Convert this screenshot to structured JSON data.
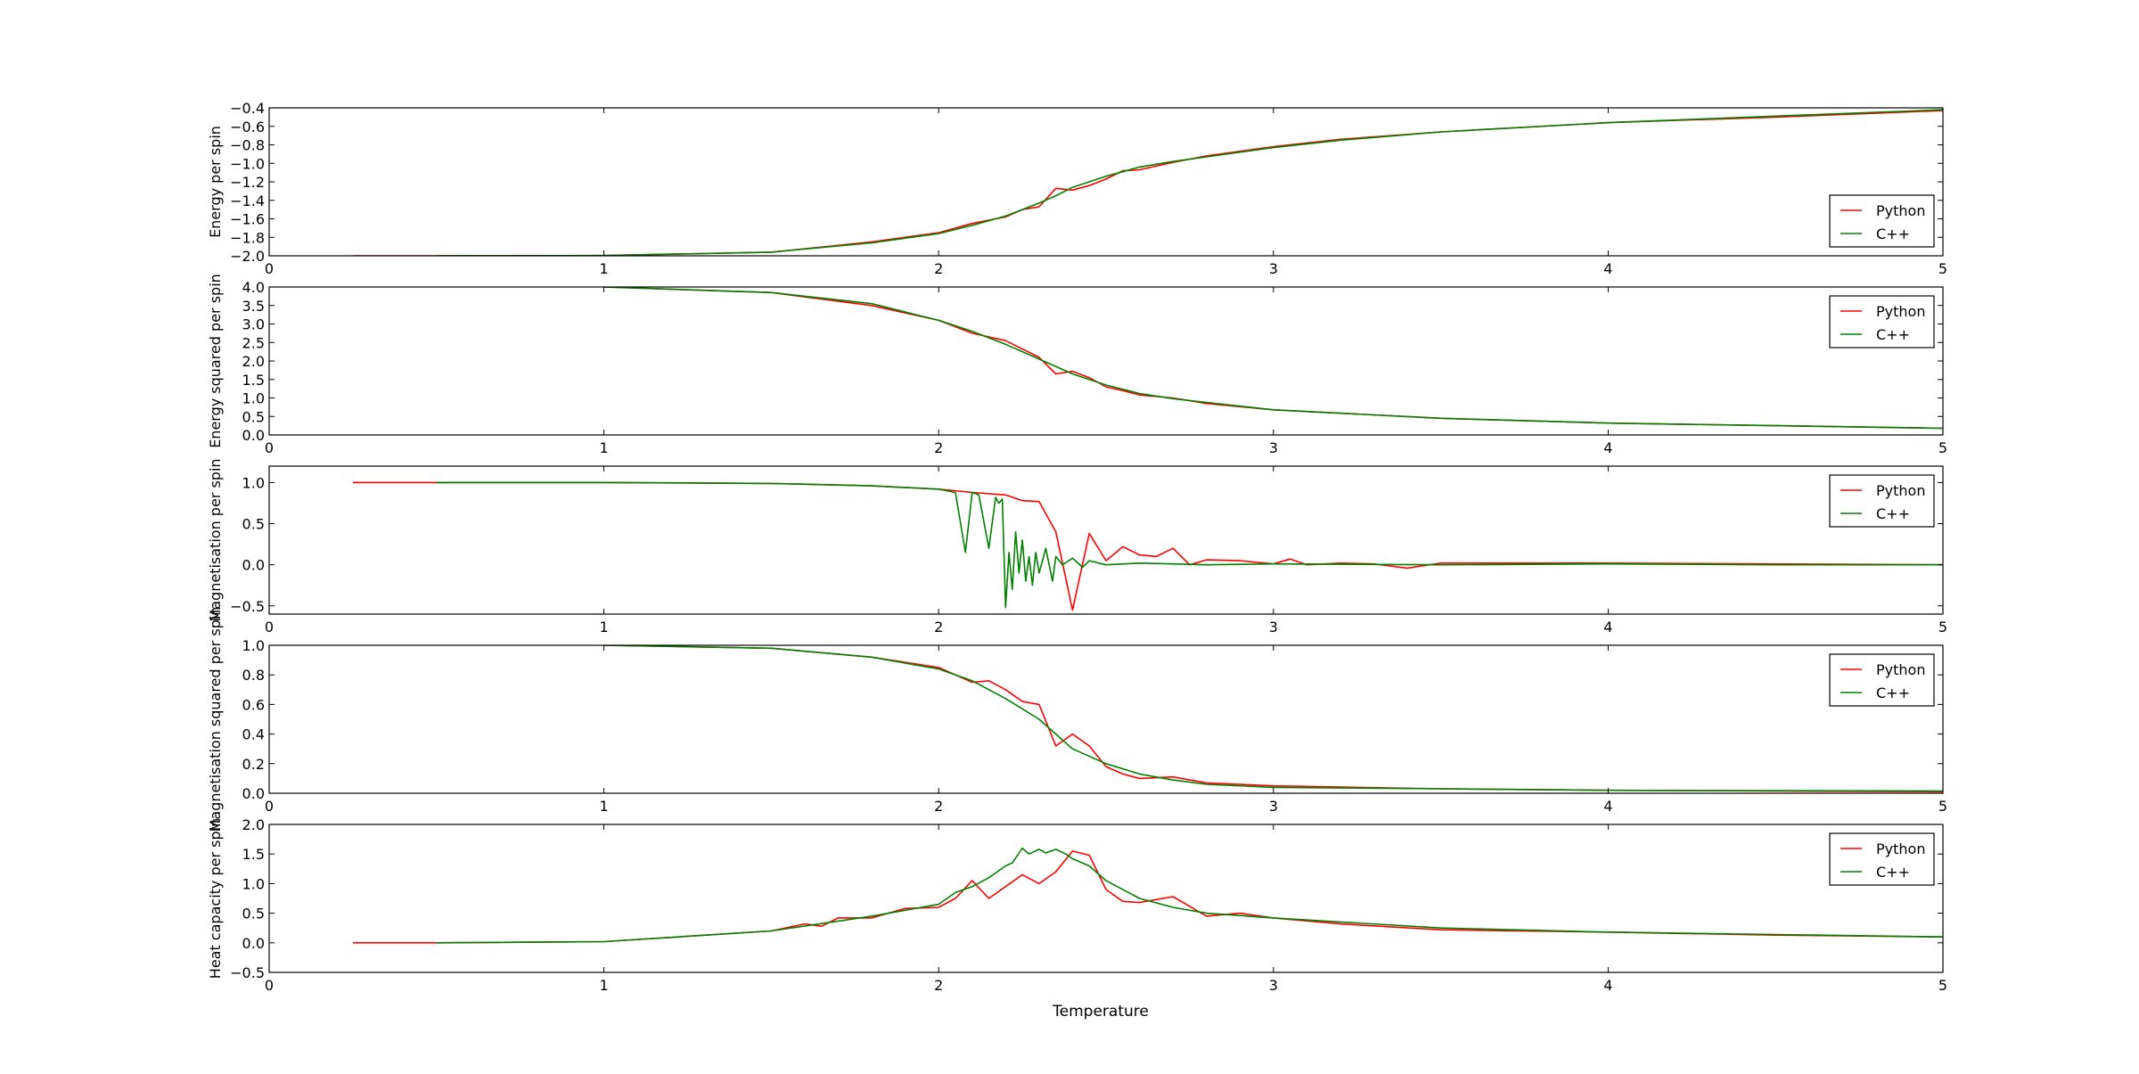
{
  "figure": {
    "xlabel": "Temperature",
    "legend_entries": [
      "Python",
      "C++"
    ],
    "series_colors": {
      "Python": "#ff0000",
      "C++": "#008000"
    }
  },
  "chart_data": [
    {
      "type": "line",
      "ylabel": "Energy per spin",
      "xlabel": "",
      "xlim": [
        0,
        5
      ],
      "ylim": [
        -2.0,
        -0.4
      ],
      "x_ticks": [
        "0",
        "1",
        "2",
        "3",
        "4",
        "5"
      ],
      "y_ticks": [
        "−2.0",
        "−1.8",
        "−1.6",
        "−1.4",
        "−1.2",
        "−1.0",
        "−0.8",
        "−0.6",
        "−0.4"
      ],
      "legend": "lower-right",
      "grid": false,
      "series": [
        {
          "name": "Python",
          "color": "#ff0000",
          "x": [
            0.25,
            0.5,
            1.0,
            1.5,
            1.8,
            2.0,
            2.1,
            2.2,
            2.25,
            2.3,
            2.35,
            2.4,
            2.45,
            2.5,
            2.55,
            2.6,
            2.7,
            2.8,
            3.0,
            3.2,
            3.5,
            4.0,
            4.5,
            5.0
          ],
          "y": [
            -2.0,
            -2.0,
            -1.997,
            -1.96,
            -1.85,
            -1.75,
            -1.65,
            -1.58,
            -1.5,
            -1.47,
            -1.27,
            -1.29,
            -1.24,
            -1.17,
            -1.08,
            -1.07,
            -0.99,
            -0.92,
            -0.82,
            -0.74,
            -0.66,
            -0.56,
            -0.5,
            -0.43
          ]
        },
        {
          "name": "C++",
          "color": "#008000",
          "x": [
            0.5,
            1.0,
            1.5,
            1.8,
            2.0,
            2.1,
            2.2,
            2.3,
            2.35,
            2.4,
            2.5,
            2.6,
            2.7,
            2.8,
            3.0,
            3.2,
            3.5,
            4.0,
            4.5,
            5.0
          ],
          "y": [
            -2.0,
            -1.997,
            -1.96,
            -1.86,
            -1.76,
            -1.67,
            -1.57,
            -1.43,
            -1.35,
            -1.26,
            -1.14,
            -1.04,
            -0.98,
            -0.93,
            -0.83,
            -0.75,
            -0.66,
            -0.56,
            -0.49,
            -0.42
          ]
        }
      ]
    },
    {
      "type": "line",
      "ylabel": "Energy squared per spin",
      "xlabel": "",
      "xlim": [
        0,
        5
      ],
      "ylim": [
        0.0,
        4.0
      ],
      "x_ticks": [
        "0",
        "1",
        "2",
        "3",
        "4",
        "5"
      ],
      "y_ticks": [
        "0.0",
        "0.5",
        "1.0",
        "1.5",
        "2.0",
        "2.5",
        "3.0",
        "3.5",
        "4.0"
      ],
      "legend": "upper-right",
      "grid": false,
      "series": [
        {
          "name": "Python",
          "color": "#ff0000",
          "x": [
            1.0,
            1.5,
            1.8,
            2.0,
            2.1,
            2.2,
            2.3,
            2.35,
            2.4,
            2.45,
            2.5,
            2.55,
            2.6,
            2.7,
            2.8,
            3.0,
            3.5,
            4.0,
            4.5,
            5.0
          ],
          "y": [
            4.0,
            3.85,
            3.5,
            3.1,
            2.75,
            2.55,
            2.1,
            1.65,
            1.72,
            1.55,
            1.3,
            1.2,
            1.08,
            1.0,
            0.85,
            0.68,
            0.45,
            0.32,
            0.25,
            0.18
          ]
        },
        {
          "name": "C++",
          "color": "#008000",
          "x": [
            1.0,
            1.5,
            1.8,
            2.0,
            2.1,
            2.2,
            2.3,
            2.4,
            2.5,
            2.6,
            2.7,
            2.8,
            3.0,
            3.5,
            4.0,
            4.5,
            5.0
          ],
          "y": [
            4.0,
            3.85,
            3.55,
            3.1,
            2.8,
            2.45,
            2.05,
            1.65,
            1.35,
            1.12,
            0.98,
            0.88,
            0.68,
            0.45,
            0.32,
            0.25,
            0.18
          ]
        }
      ]
    },
    {
      "type": "line",
      "ylabel": "Magnetisation per spin",
      "xlabel": "",
      "xlim": [
        0,
        5
      ],
      "ylim": [
        -0.6,
        1.2
      ],
      "x_ticks": [
        "0",
        "1",
        "2",
        "3",
        "4",
        "5"
      ],
      "y_ticks": [
        "−0.5",
        "0.0",
        "0.5",
        "1.0"
      ],
      "legend": "upper-right",
      "grid": false,
      "series": [
        {
          "name": "Python",
          "color": "#ff0000",
          "x": [
            0.25,
            0.5,
            1.0,
            1.5,
            1.8,
            2.0,
            2.1,
            2.2,
            2.25,
            2.3,
            2.35,
            2.4,
            2.45,
            2.5,
            2.55,
            2.6,
            2.65,
            2.7,
            2.75,
            2.8,
            2.9,
            3.0,
            3.05,
            3.1,
            3.2,
            3.3,
            3.4,
            3.5,
            4.0,
            4.5,
            5.0
          ],
          "y": [
            1.0,
            1.0,
            1.0,
            0.99,
            0.96,
            0.92,
            0.88,
            0.85,
            0.78,
            0.77,
            0.4,
            -0.55,
            0.38,
            0.05,
            0.22,
            0.12,
            0.1,
            0.2,
            0.0,
            0.06,
            0.05,
            0.01,
            0.07,
            0.0,
            0.02,
            0.01,
            -0.04,
            0.02,
            0.02,
            0.01,
            0.0
          ]
        },
        {
          "name": "C++",
          "color": "#008000",
          "x": [
            0.5,
            1.0,
            1.5,
            1.8,
            2.0,
            2.05,
            2.08,
            2.1,
            2.12,
            2.15,
            2.17,
            2.18,
            2.19,
            2.2,
            2.21,
            2.22,
            2.23,
            2.24,
            2.25,
            2.26,
            2.27,
            2.28,
            2.29,
            2.3,
            2.32,
            2.34,
            2.35,
            2.37,
            2.4,
            2.43,
            2.45,
            2.5,
            2.6,
            2.7,
            2.8,
            3.0,
            3.5,
            4.0,
            4.5,
            5.0
          ],
          "y": [
            1.0,
            1.0,
            0.99,
            0.96,
            0.92,
            0.88,
            0.15,
            0.88,
            0.85,
            0.2,
            0.82,
            0.75,
            0.8,
            -0.52,
            0.15,
            -0.3,
            0.4,
            -0.1,
            0.3,
            -0.2,
            0.1,
            -0.25,
            0.15,
            -0.1,
            0.2,
            -0.2,
            0.1,
            0.0,
            0.08,
            -0.03,
            0.05,
            0.0,
            0.02,
            0.01,
            0.0,
            0.01,
            0.0,
            0.01,
            0.0,
            0.0
          ]
        }
      ]
    },
    {
      "type": "line",
      "ylabel": "Magnetisation squared per spin",
      "xlabel": "",
      "xlim": [
        0,
        5
      ],
      "ylim": [
        0.0,
        1.0
      ],
      "x_ticks": [
        "0",
        "1",
        "2",
        "3",
        "4",
        "5"
      ],
      "y_ticks": [
        "0.0",
        "0.2",
        "0.4",
        "0.6",
        "0.8",
        "1.0"
      ],
      "legend": "upper-right",
      "grid": false,
      "series": [
        {
          "name": "Python",
          "color": "#ff0000",
          "x": [
            1.0,
            1.5,
            1.8,
            2.0,
            2.1,
            2.15,
            2.2,
            2.25,
            2.3,
            2.35,
            2.4,
            2.45,
            2.5,
            2.55,
            2.6,
            2.7,
            2.8,
            3.0,
            3.5,
            4.0,
            5.0
          ],
          "y": [
            1.0,
            0.98,
            0.92,
            0.85,
            0.75,
            0.76,
            0.7,
            0.62,
            0.6,
            0.32,
            0.4,
            0.32,
            0.18,
            0.13,
            0.1,
            0.11,
            0.07,
            0.05,
            0.03,
            0.02,
            0.01
          ]
        },
        {
          "name": "C++",
          "color": "#008000",
          "x": [
            1.0,
            1.5,
            1.8,
            2.0,
            2.1,
            2.2,
            2.3,
            2.35,
            2.4,
            2.5,
            2.6,
            2.7,
            2.8,
            3.0,
            3.5,
            4.0,
            5.0
          ],
          "y": [
            1.0,
            0.98,
            0.92,
            0.84,
            0.76,
            0.64,
            0.5,
            0.4,
            0.3,
            0.2,
            0.13,
            0.09,
            0.06,
            0.04,
            0.03,
            0.02,
            0.015
          ]
        }
      ]
    },
    {
      "type": "line",
      "ylabel": "Heat capacity per spin",
      "xlabel": "Temperature",
      "xlim": [
        0,
        5
      ],
      "ylim": [
        -0.5,
        2.0
      ],
      "x_ticks": [
        "0",
        "1",
        "2",
        "3",
        "4",
        "5"
      ],
      "y_ticks": [
        "−0.5",
        "0.0",
        "0.5",
        "1.0",
        "1.5",
        "2.0"
      ],
      "legend": "upper-right",
      "grid": false,
      "series": [
        {
          "name": "Python",
          "color": "#ff0000",
          "x": [
            0.25,
            0.5,
            1.0,
            1.5,
            1.6,
            1.65,
            1.7,
            1.8,
            1.9,
            2.0,
            2.05,
            2.1,
            2.15,
            2.2,
            2.25,
            2.3,
            2.35,
            2.4,
            2.45,
            2.5,
            2.55,
            2.6,
            2.7,
            2.8,
            2.9,
            3.0,
            3.2,
            3.5,
            4.0,
            4.5,
            5.0
          ],
          "y": [
            0.0,
            0.0,
            0.02,
            0.2,
            0.32,
            0.28,
            0.42,
            0.42,
            0.58,
            0.6,
            0.75,
            1.05,
            0.75,
            0.95,
            1.15,
            1.0,
            1.2,
            1.55,
            1.48,
            0.9,
            0.7,
            0.68,
            0.78,
            0.45,
            0.5,
            0.42,
            0.32,
            0.22,
            0.18,
            0.13,
            0.1
          ]
        },
        {
          "name": "C++",
          "color": "#008000",
          "x": [
            0.5,
            1.0,
            1.5,
            1.8,
            2.0,
            2.05,
            2.1,
            2.15,
            2.2,
            2.22,
            2.25,
            2.27,
            2.3,
            2.32,
            2.35,
            2.38,
            2.4,
            2.45,
            2.5,
            2.6,
            2.7,
            2.8,
            3.0,
            3.5,
            4.0,
            4.5,
            5.0
          ],
          "y": [
            0.0,
            0.02,
            0.2,
            0.45,
            0.65,
            0.85,
            0.95,
            1.1,
            1.3,
            1.35,
            1.6,
            1.5,
            1.58,
            1.52,
            1.58,
            1.5,
            1.42,
            1.3,
            1.05,
            0.75,
            0.6,
            0.5,
            0.42,
            0.25,
            0.18,
            0.14,
            0.1
          ]
        }
      ]
    }
  ]
}
